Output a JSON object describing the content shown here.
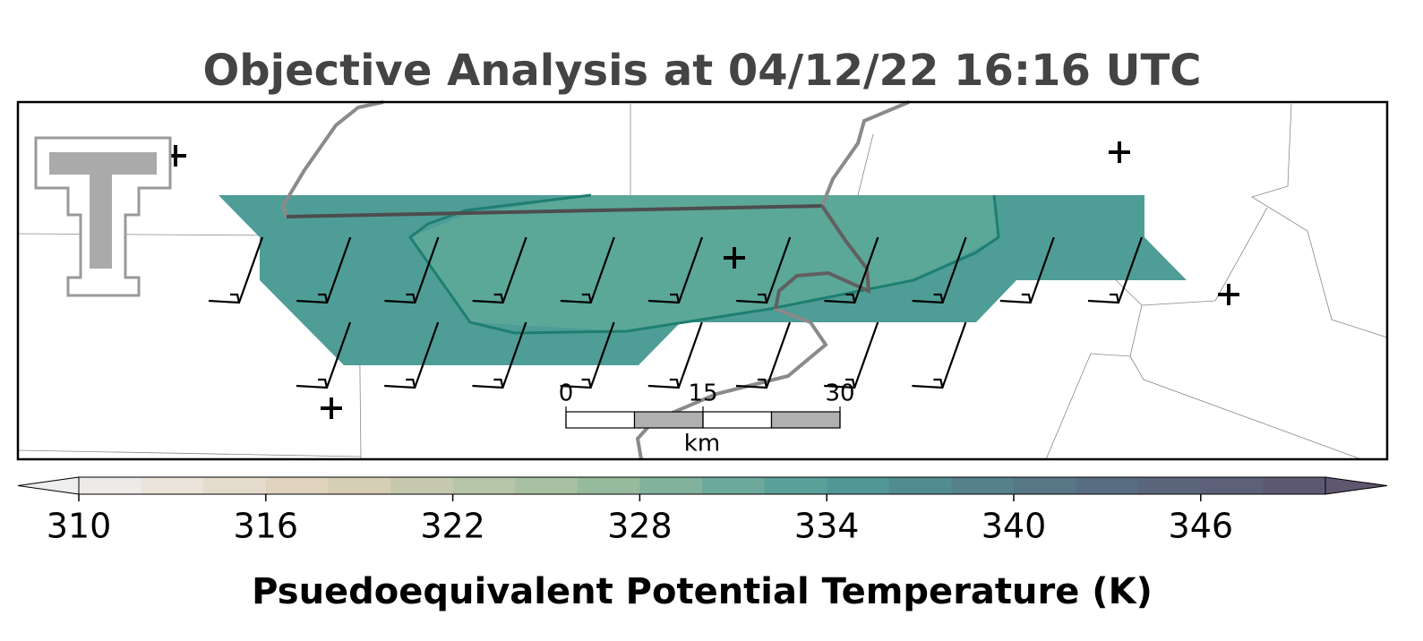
{
  "title": "Objective Analysis at 04/12/22 16:16 UTC",
  "scale_bar": {
    "ticks": [
      0,
      15,
      30
    ],
    "unit": "km"
  },
  "colorbar": {
    "label": "Psuedoequivalent Potential Temperature (K)",
    "range": [
      310,
      350
    ],
    "ticks": [
      310,
      316,
      322,
      328,
      334,
      340,
      346
    ]
  }
}
